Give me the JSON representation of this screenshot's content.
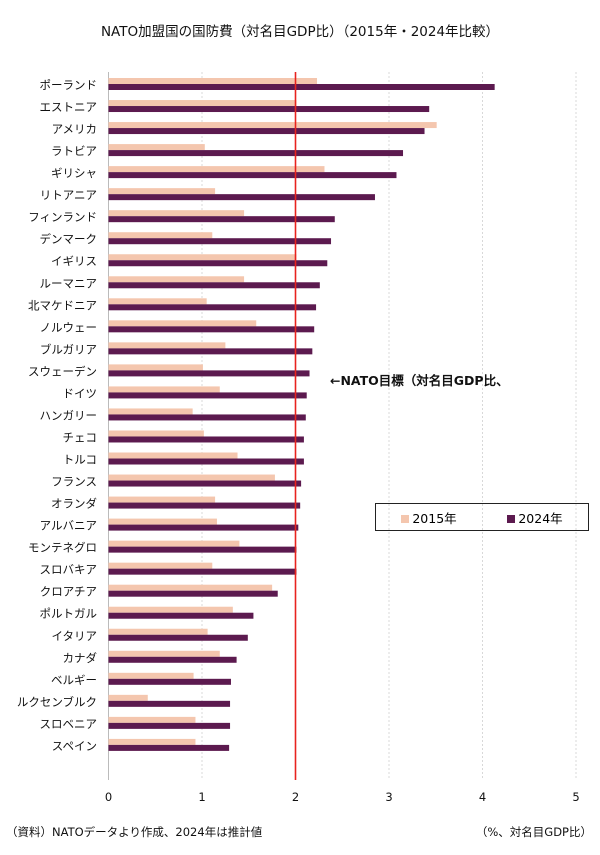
{
  "chart_data": {
    "type": "bar",
    "orientation": "horizontal",
    "title": "NATO加盟国の国防費（対名目GDP比）（2015年・2024年比較）",
    "categories": [
      "ポーランド",
      "エストニア",
      "アメリカ",
      "ラトビア",
      "ギリシャ",
      "リトアニア",
      "フィンランド",
      "デンマーク",
      "イギリス",
      "ルーマニア",
      "北マケドニア",
      "ノルウェー",
      "ブルガリア",
      "スウェーデン",
      "ドイツ",
      "ハンガリー",
      "チェコ",
      "トルコ",
      "フランス",
      "オランダ",
      "アルバニア",
      "モンテネグロ",
      "スロバキア",
      "クロアチア",
      "ポルトガル",
      "イタリア",
      "カナダ",
      "ベルギー",
      "ルクセンブルク",
      "スロベニア",
      "スペイン"
    ],
    "series": [
      {
        "name": "2015年",
        "color": "#f4c6ae",
        "values": [
          2.23,
          2.01,
          3.51,
          1.03,
          2.31,
          1.14,
          1.45,
          1.11,
          2.01,
          1.45,
          1.05,
          1.58,
          1.25,
          1.01,
          1.19,
          0.9,
          1.02,
          1.38,
          1.78,
          1.14,
          1.16,
          1.4,
          1.11,
          1.75,
          1.33,
          1.06,
          1.19,
          0.91,
          0.42,
          0.93,
          0.93
        ]
      },
      {
        "name": "2024年",
        "color": "#5c1a4f",
        "values": [
          4.13,
          3.43,
          3.38,
          3.15,
          3.08,
          2.85,
          2.42,
          2.38,
          2.34,
          2.26,
          2.22,
          2.2,
          2.18,
          2.15,
          2.12,
          2.11,
          2.09,
          2.09,
          2.06,
          2.05,
          2.03,
          2.01,
          2.01,
          1.81,
          1.55,
          1.49,
          1.37,
          1.31,
          1.3,
          1.3,
          1.29
        ]
      }
    ],
    "xlim": [
      0,
      5
    ],
    "xticks": [
      "0",
      "1",
      "2",
      "3",
      "4",
      "5"
    ],
    "grid": true,
    "legend_placement": "right-middle",
    "reference_line": {
      "value": 2,
      "color": "#e8231e",
      "label": "←NATO目標（対名目GDP比、"
    },
    "xlabel": "（%、対名目GDP比）",
    "source": "（資料）NATOデータより作成、2024年は推計値"
  }
}
